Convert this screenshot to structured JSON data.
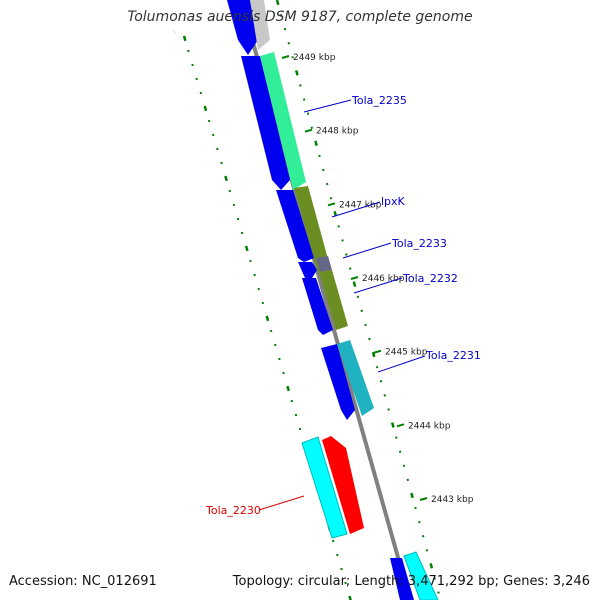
{
  "title": "Tolumonas auensis DSM 9187, complete genome",
  "footer": {
    "accession_label": "Accession:",
    "accession": "NC_012691",
    "topology_label": "Topology:",
    "topology": "circular",
    "length_label": "Length:",
    "length": "3,471,292 bp",
    "genes_label": "Genes:",
    "genes": "3,246"
  },
  "scale": {
    "unit": "kbp",
    "ticks": [
      {
        "value": 2449,
        "label": "2449 kbp"
      },
      {
        "value": 2448,
        "label": "2448 kbp"
      },
      {
        "value": 2447,
        "label": "2447 kbp"
      },
      {
        "value": 2446,
        "label": "2446 kbp"
      },
      {
        "value": 2445,
        "label": "2445 kbp"
      },
      {
        "value": 2444,
        "label": "2444 kbp"
      },
      {
        "value": 2443,
        "label": "2443 kbp"
      }
    ]
  },
  "gene_labels": [
    {
      "name": "Tola_2235",
      "color": "#0000cc"
    },
    {
      "name": "lpxK",
      "color": "#0000cc"
    },
    {
      "name": "Tola_2233",
      "color": "#0000cc"
    },
    {
      "name": "Tola_2232",
      "color": "#0000cc"
    },
    {
      "name": "Tola_2231",
      "color": "#0000cc"
    },
    {
      "name": "Tola_2230",
      "color": "#dd0000"
    }
  ],
  "colors": {
    "backbone": "#808080",
    "cds_forward": "#0000ee",
    "cds_reverse": "#0000ee",
    "cog_green": "#33ee99",
    "cog_olive": "#6b8e23",
    "cog_teal": "#20b2c0",
    "cog_cyan": "#00ffff",
    "cog_red": "#ff0000",
    "cog_gray": "#c8c8c8",
    "tick": "#008000"
  }
}
